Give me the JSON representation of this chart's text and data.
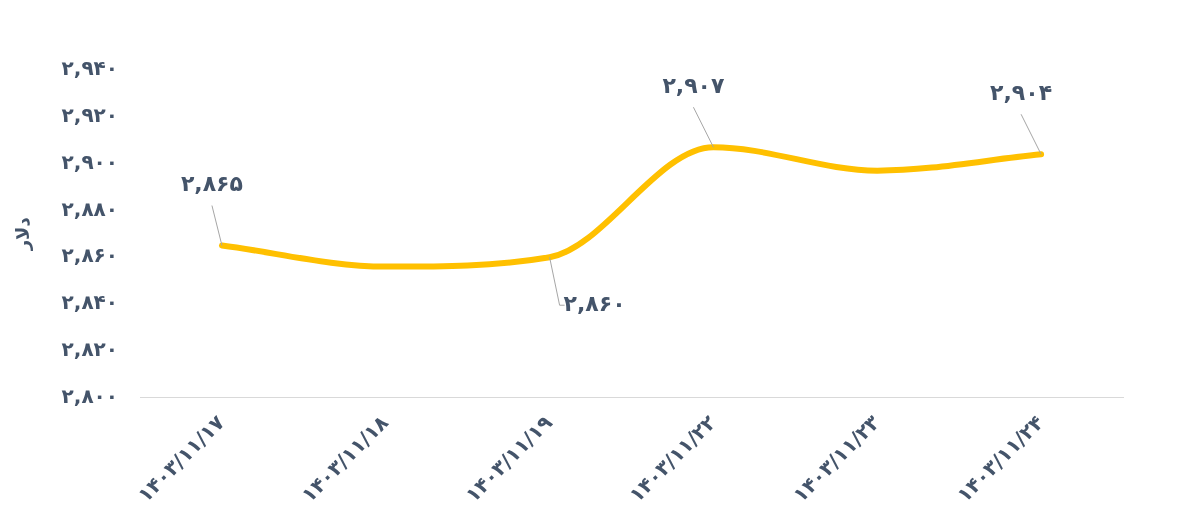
{
  "chart_data": {
    "type": "line",
    "ylabel": "دلار",
    "categories": [
      "۱۴۰۳/۱۱/۱۷",
      "۱۴۰۳/۱۱/۱۸",
      "۱۴۰۳/۱۱/۱۹",
      "۱۴۰۳/۱۱/۲۲",
      "۱۴۰۳/۱۱/۲۳",
      "۱۴۰۳/۱۱/۲۴"
    ],
    "series": [
      {
        "color": "#ffc000",
        "values": [
          2865,
          2856,
          2860,
          2907,
          2897,
          2904
        ],
        "value_labels": [
          "۲,۸۶۵",
          null,
          "۲,۸۶۰",
          "۲,۹۰۷",
          null,
          "۲,۹۰۴"
        ]
      }
    ],
    "ylim": [
      2800,
      2940
    ],
    "yticks": [
      {
        "value": 2800,
        "label": "۲,۸۰۰"
      },
      {
        "value": 2820,
        "label": "۲,۸۲۰"
      },
      {
        "value": 2840,
        "label": "۲,۸۴۰"
      },
      {
        "value": 2860,
        "label": "۲,۸۶۰"
      },
      {
        "value": 2880,
        "label": "۲,۸۸۰"
      },
      {
        "value": 2900,
        "label": "۲,۹۰۰"
      },
      {
        "value": 2920,
        "label": "۲,۹۲۰"
      },
      {
        "value": 2940,
        "label": "۲,۹۴۰"
      }
    ],
    "grid": false,
    "legend": false,
    "marker": "none",
    "line_style": "solid"
  }
}
